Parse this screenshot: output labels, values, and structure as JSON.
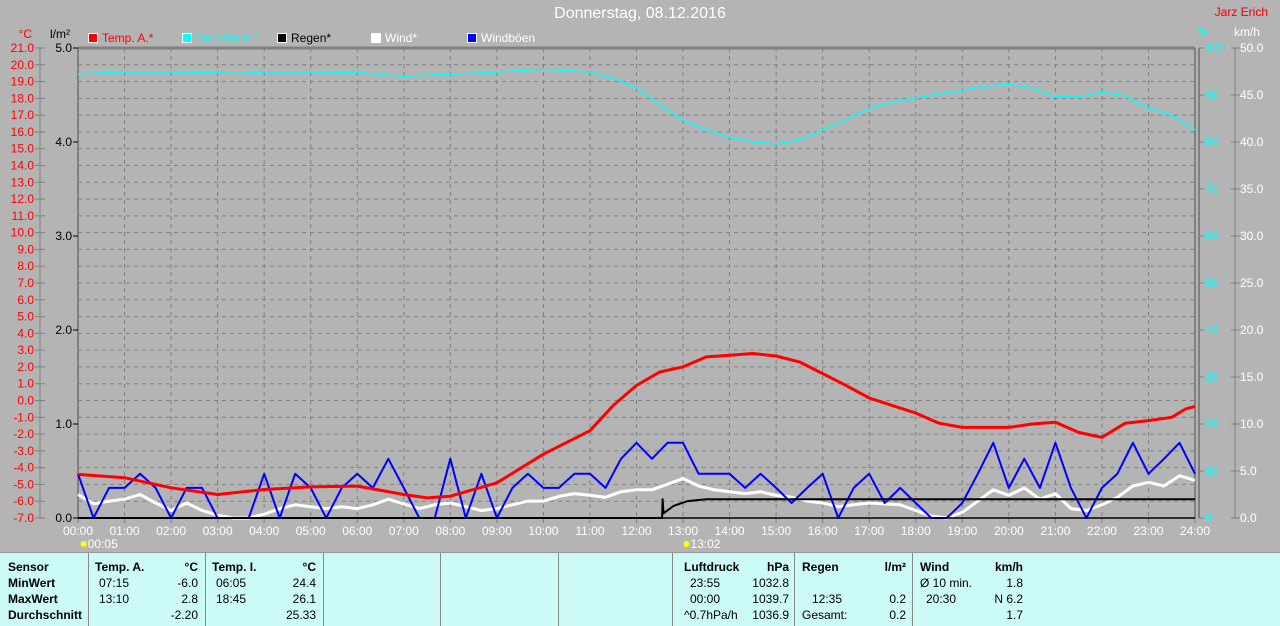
{
  "header": {
    "title": "Donnerstag, 08.12.2016",
    "author": "Jarz Erich"
  },
  "legend": [
    {
      "label": "Temp. A.*",
      "color": "#ff0000"
    },
    {
      "label": "Feuchte A.*",
      "color": "#00ffff"
    },
    {
      "label": "Regen*",
      "color": "#000000"
    },
    {
      "label": "Wind*",
      "color": "#ffffff"
    },
    {
      "label": "Windböen",
      "color": "#0000ff"
    }
  ],
  "chart_data": {
    "type": "line",
    "title": "Donnerstag, 08.12.2016",
    "x_unit": "hours",
    "xlim": [
      0,
      24
    ],
    "x_tick_labels": [
      "00:00",
      "01:00",
      "02:00",
      "03:00",
      "04:00",
      "05:00",
      "06:00",
      "07:00",
      "08:00",
      "09:00",
      "10:00",
      "11:00",
      "12:00",
      "13:00",
      "14:00",
      "15:00",
      "16:00",
      "17:00",
      "18:00",
      "19:00",
      "20:00",
      "21:00",
      "22:00",
      "23:00",
      "24:00"
    ],
    "axes": {
      "temp": {
        "label": "°C",
        "ylim": [
          -7,
          21
        ],
        "ticks": [
          "21.0",
          "20.0",
          "19.0",
          "18.0",
          "17.0",
          "16.0",
          "15.0",
          "14.0",
          "13.0",
          "12.0",
          "11.0",
          "10.0",
          "9.0",
          "8.0",
          "7.0",
          "6.0",
          "5.0",
          "4.0",
          "3.0",
          "2.0",
          "1.0",
          "0.0",
          "-1.0",
          "-2.0",
          "-3.0",
          "-4.0",
          "-5.0",
          "-6.0",
          "-7.0"
        ],
        "color": "#ff0000"
      },
      "rain": {
        "label": "l/m²",
        "ylim": [
          0,
          5
        ],
        "ticks": [
          "5.0",
          "4.0",
          "3.0",
          "2.0",
          "1.0",
          "0.0"
        ],
        "color": "#000000"
      },
      "humidity": {
        "label": "%",
        "ylim": [
          0,
          100
        ],
        "ticks": [
          "100",
          "90",
          "80",
          "70",
          "60",
          "50",
          "40",
          "30",
          "20",
          "10",
          "0"
        ],
        "color": "#00ffff"
      },
      "wind": {
        "label": "km/h",
        "ylim": [
          0,
          50
        ],
        "ticks": [
          "50.0",
          "45.0",
          "40.0",
          "35.0",
          "30.0",
          "25.0",
          "20.0",
          "15.0",
          "10.0",
          "5.0",
          "0.0"
        ],
        "color": "#ffffff"
      }
    },
    "series": [
      {
        "name": "Temp. A.*",
        "axis": "temp",
        "color": "#ff0000",
        "points": [
          [
            0,
            -4.4
          ],
          [
            1,
            -4.6
          ],
          [
            2,
            -5.2
          ],
          [
            3,
            -5.6
          ],
          [
            4,
            -5.3
          ],
          [
            5,
            -5.15
          ],
          [
            6,
            -5.1
          ],
          [
            7,
            -5.6
          ],
          [
            7.5,
            -5.8
          ],
          [
            8,
            -5.7
          ],
          [
            9,
            -4.9
          ],
          [
            10,
            -3.2
          ],
          [
            11,
            -1.8
          ],
          [
            11.5,
            -0.3
          ],
          [
            12,
            0.9
          ],
          [
            12.5,
            1.7
          ],
          [
            13,
            2.0
          ],
          [
            13.5,
            2.6
          ],
          [
            14,
            2.7
          ],
          [
            14.5,
            2.8
          ],
          [
            15,
            2.65
          ],
          [
            15.5,
            2.3
          ],
          [
            16,
            1.6
          ],
          [
            16.5,
            0.9
          ],
          [
            17,
            0.15
          ],
          [
            18,
            -0.75
          ],
          [
            18.5,
            -1.35
          ],
          [
            19,
            -1.6
          ],
          [
            20,
            -1.6
          ],
          [
            20.5,
            -1.4
          ],
          [
            21,
            -1.3
          ],
          [
            21.5,
            -1.9
          ],
          [
            22,
            -2.2
          ],
          [
            22.5,
            -1.35
          ],
          [
            23,
            -1.2
          ],
          [
            23.5,
            -1.0
          ],
          [
            23.8,
            -0.5
          ],
          [
            24,
            -0.35
          ]
        ]
      },
      {
        "name": "Feuchte A.*",
        "axis": "humidity",
        "color": "#00ffff",
        "points": [
          [
            0,
            94.5
          ],
          [
            1,
            94.9
          ],
          [
            2,
            94.9
          ],
          [
            3,
            94.7
          ],
          [
            3.5,
            94.6
          ],
          [
            4,
            94.9
          ],
          [
            5,
            94.9
          ],
          [
            6,
            94.8
          ],
          [
            7,
            94.0
          ],
          [
            8,
            94.4
          ],
          [
            9,
            94.9
          ],
          [
            10,
            95.5
          ],
          [
            11,
            94.9
          ],
          [
            11.5,
            93.6
          ],
          [
            12,
            91.5
          ],
          [
            12.5,
            87.9
          ],
          [
            13,
            84.7
          ],
          [
            13.5,
            82.6
          ],
          [
            14,
            81.0
          ],
          [
            14.5,
            80.0
          ],
          [
            15,
            79.6
          ],
          [
            15.5,
            80.4
          ],
          [
            16,
            82.6
          ],
          [
            16.5,
            84.7
          ],
          [
            17,
            87.2
          ],
          [
            17.5,
            88.5
          ],
          [
            18,
            89.4
          ],
          [
            19,
            91.0
          ],
          [
            19.5,
            91.9
          ],
          [
            20,
            92.3
          ],
          [
            20.5,
            91.5
          ],
          [
            21,
            89.6
          ],
          [
            21.5,
            89.6
          ],
          [
            22,
            90.6
          ],
          [
            22.5,
            89.8
          ],
          [
            23,
            87.2
          ],
          [
            23.5,
            85.7
          ],
          [
            24,
            82.6
          ]
        ]
      },
      {
        "name": "Regen*",
        "axis": "rain",
        "color": "#000000",
        "points": [
          [
            0,
            0
          ],
          [
            12.55,
            0
          ],
          [
            12.56,
            0.2
          ],
          [
            12.58,
            0.05
          ],
          [
            12.8,
            0.13
          ],
          [
            13.1,
            0.18
          ],
          [
            13.5,
            0.2
          ],
          [
            24,
            0.2
          ]
        ]
      },
      {
        "name": "Wind*",
        "axis": "wind",
        "color": "#ffffff",
        "step_minutes": 20,
        "values": [
          2.5,
          1.5,
          1.8,
          2.0,
          2.5,
          1.6,
          0.8,
          1.6,
          0.8,
          0.3,
          0,
          0,
          0.4,
          1.0,
          1.4,
          1.2,
          1.0,
          1.2,
          1.0,
          1.4,
          2.0,
          1.5,
          1.0,
          1.4,
          1.6,
          1.2,
          0.8,
          1.0,
          1.4,
          1.8,
          1.8,
          2.3,
          2.6,
          2.4,
          2.2,
          2.8,
          3.0,
          3.0,
          3.6,
          4.2,
          3.4,
          3.0,
          2.8,
          2.6,
          2.8,
          2.4,
          2.2,
          1.8,
          1.6,
          1.2,
          1.4,
          1.6,
          1.5,
          1.4,
          0.8,
          0.2,
          0,
          0.6,
          1.8,
          3.0,
          2.4,
          3.2,
          2.0,
          2.6,
          1.0,
          0.8,
          1.4,
          2.2,
          3.4,
          3.8,
          3.4,
          4.5,
          4.0
        ]
      },
      {
        "name": "Windböen",
        "axis": "wind",
        "color": "#0000ff",
        "step_minutes": 20,
        "values": [
          4.7,
          0,
          3.2,
          3.2,
          4.7,
          3.2,
          0,
          3.2,
          3.2,
          0,
          0,
          0,
          4.7,
          0,
          4.7,
          3.2,
          0,
          3.2,
          4.7,
          3.2,
          6.3,
          3.2,
          0,
          0,
          6.3,
          0,
          4.7,
          0,
          3.2,
          4.7,
          3.2,
          3.2,
          4.7,
          4.7,
          3.2,
          6.3,
          8.0,
          6.3,
          8.0,
          8.0,
          4.7,
          4.7,
          4.7,
          3.2,
          4.7,
          3.2,
          1.6,
          3.2,
          4.7,
          0,
          3.2,
          4.7,
          1.6,
          3.2,
          1.6,
          0,
          0,
          1.6,
          4.7,
          8.0,
          3.2,
          6.3,
          3.2,
          8.0,
          3.2,
          0,
          3.2,
          4.7,
          8.0,
          4.7,
          6.3,
          8.0,
          4.7
        ]
      }
    ],
    "annotations": [
      {
        "label": "00:05",
        "hour": 0.08,
        "meaning": "sunrise-moon marker"
      },
      {
        "label": "13:02",
        "hour": 13.03,
        "meaning": "moon marker"
      }
    ],
    "grid": true
  },
  "stats": {
    "sensor": {
      "header": "Sensor",
      "min": "MinWert",
      "max": "MaxWert",
      "avg": "Durchschnitt"
    },
    "temp_a": {
      "header": "Temp. A.",
      "unit": "°C",
      "min_time": "07:15",
      "min": "-6.0",
      "max_time": "13:10",
      "max": "2.8",
      "avg": "-2.20"
    },
    "temp_i": {
      "header": "Temp. I.",
      "unit": "°C",
      "min_time": "06:05",
      "min": "24.4",
      "max_time": "18:45",
      "max": "26.1",
      "avg": "25.33"
    },
    "pressure": {
      "header": "Luftdruck",
      "unit": "hPa",
      "min_time": "23:55",
      "min": "1032.8",
      "max_time": "00:00",
      "max": "1039.7",
      "trend": "^0.7hPa/h",
      "avg": "1036.9"
    },
    "rain": {
      "header": "Regen",
      "unit": "l/m²",
      "max_time": "12:35",
      "max": "0.2",
      "total_label": "Gesamt:",
      "total": "0.2"
    },
    "wind": {
      "header": "Wind",
      "unit": "km/h",
      "avg_label": "Ø 10 min.",
      "avg10": "1.8",
      "max_time": "20:30",
      "max": "N 6.2",
      "avg": "1.7"
    }
  }
}
